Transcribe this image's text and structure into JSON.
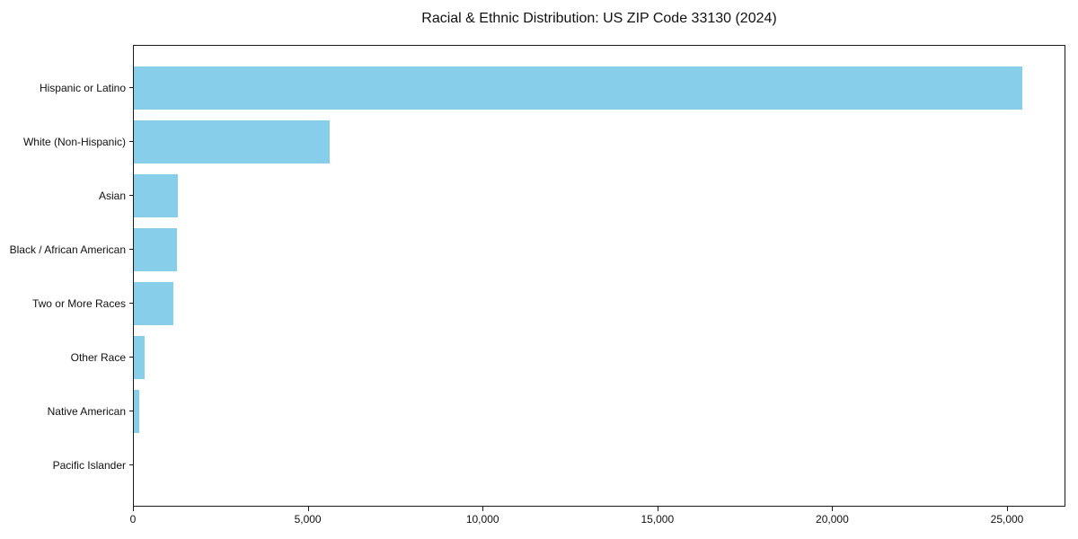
{
  "chart_data": {
    "type": "bar",
    "orientation": "horizontal",
    "title": "Racial & Ethnic Distribution: US ZIP Code 33130 (2024)",
    "categories": [
      "Hispanic or Latino",
      "White (Non-Hispanic)",
      "Asian",
      "Black / African American",
      "Two or More Races",
      "Other Race",
      "Native American",
      "Pacific Islander"
    ],
    "values": [
      25400,
      5600,
      1250,
      1220,
      1140,
      300,
      150,
      0
    ],
    "xlabel": "",
    "ylabel": "",
    "xlim": [
      0,
      26670
    ],
    "x_ticks": [
      0,
      5000,
      10000,
      15000,
      20000,
      25000
    ],
    "x_tick_labels": [
      "0",
      "5,000",
      "10,000",
      "15,000",
      "20,000",
      "25,000"
    ],
    "bar_color": "#87CEEB",
    "spine_color": "#1a1a1a",
    "background_color": "#ffffff",
    "grid": false,
    "legend": null
  }
}
